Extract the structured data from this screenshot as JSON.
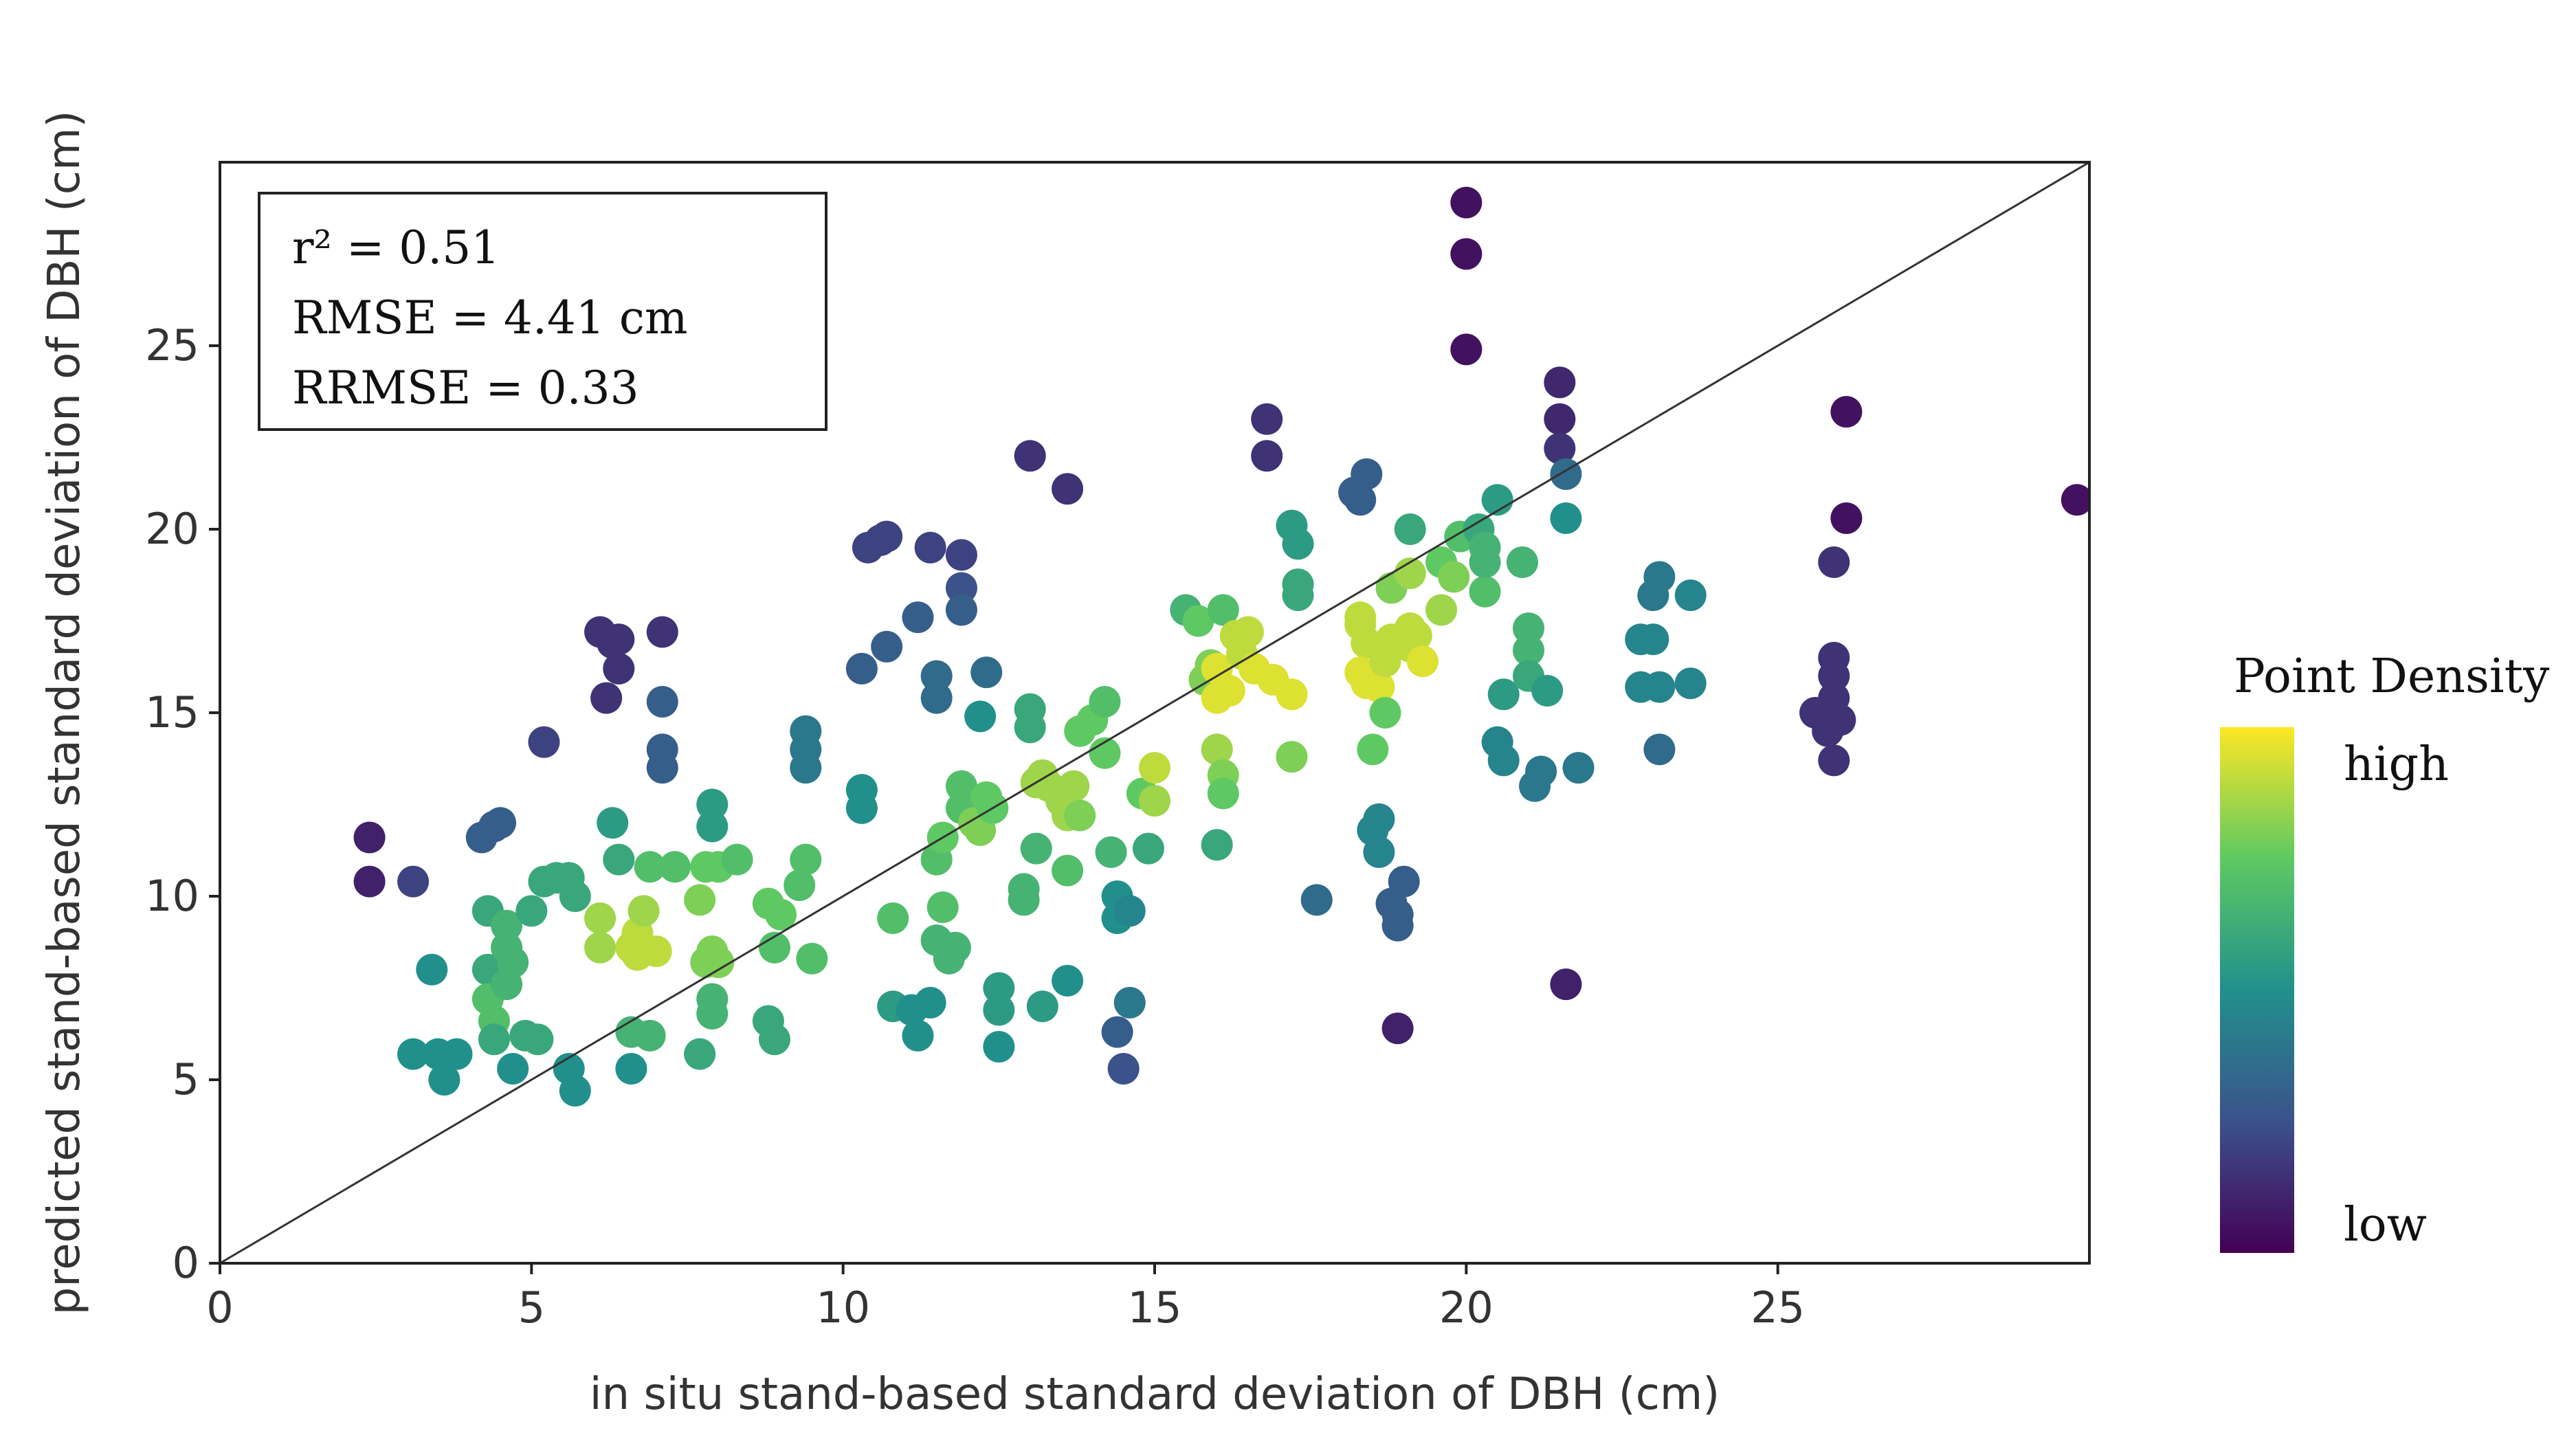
{
  "chart_data": {
    "type": "scatter",
    "xlabel": "in situ stand-based standard deviation of DBH (cm)",
    "ylabel": "predicted stand-based standard deviation of DBH (cm)",
    "xlim": [
      0,
      30
    ],
    "ylim": [
      0,
      30
    ],
    "xticks": [
      0,
      5,
      10,
      15,
      20,
      25
    ],
    "yticks": [
      0,
      5,
      10,
      15,
      20,
      25
    ],
    "grid": false,
    "reference_line": "1:1",
    "annotations": {
      "r2": "r² = 0.51",
      "rmse": "RMSE = 4.41 cm",
      "rrmse": "RRMSE = 0.33"
    },
    "colorbar": {
      "title": "Point Density",
      "high_label": "high",
      "low_label": "low",
      "colormap": [
        "#440154",
        "#3b528b",
        "#21908c",
        "#5ec962",
        "#fde725"
      ]
    },
    "points": [
      [
        2.4,
        11.6,
        0.1
      ],
      [
        2.4,
        10.4,
        0.1
      ],
      [
        3.1,
        10.4,
        0.2
      ],
      [
        3.1,
        5.7,
        0.5
      ],
      [
        3.4,
        8.0,
        0.5
      ],
      [
        3.5,
        5.7,
        0.5
      ],
      [
        3.6,
        5.0,
        0.5
      ],
      [
        3.8,
        5.7,
        0.5
      ],
      [
        4.2,
        11.6,
        0.3
      ],
      [
        4.4,
        11.9,
        0.3
      ],
      [
        4.5,
        12.0,
        0.3
      ],
      [
        4.3,
        9.6,
        0.6
      ],
      [
        4.3,
        8.0,
        0.6
      ],
      [
        4.3,
        7.2,
        0.7
      ],
      [
        4.4,
        6.6,
        0.7
      ],
      [
        4.4,
        6.1,
        0.6
      ],
      [
        4.6,
        9.2,
        0.65
      ],
      [
        4.6,
        8.6,
        0.65
      ],
      [
        4.7,
        8.2,
        0.65
      ],
      [
        4.6,
        7.6,
        0.65
      ],
      [
        4.7,
        5.3,
        0.5
      ],
      [
        4.9,
        6.2,
        0.6
      ],
      [
        5.0,
        9.6,
        0.6
      ],
      [
        5.1,
        6.1,
        0.6
      ],
      [
        5.2,
        14.2,
        0.2
      ],
      [
        5.2,
        10.4,
        0.6
      ],
      [
        5.4,
        10.5,
        0.6
      ],
      [
        5.6,
        10.5,
        0.6
      ],
      [
        5.6,
        5.3,
        0.5
      ],
      [
        5.7,
        4.7,
        0.5
      ],
      [
        5.7,
        10.0,
        0.6
      ],
      [
        6.1,
        8.6,
        0.85
      ],
      [
        6.1,
        9.4,
        0.85
      ],
      [
        6.1,
        17.2,
        0.15
      ],
      [
        6.2,
        15.4,
        0.15
      ],
      [
        6.3,
        16.9,
        0.15
      ],
      [
        6.4,
        16.2,
        0.15
      ],
      [
        6.4,
        17.0,
        0.15
      ],
      [
        6.3,
        12.0,
        0.55
      ],
      [
        6.4,
        11.0,
        0.6
      ],
      [
        6.6,
        8.6,
        0.9
      ],
      [
        6.7,
        9.0,
        0.9
      ],
      [
        6.7,
        8.4,
        0.9
      ],
      [
        6.8,
        9.6,
        0.85
      ],
      [
        6.9,
        10.8,
        0.7
      ],
      [
        6.6,
        6.3,
        0.65
      ],
      [
        6.6,
        5.3,
        0.5
      ],
      [
        6.9,
        6.2,
        0.65
      ],
      [
        7.0,
        8.5,
        0.9
      ],
      [
        7.1,
        17.2,
        0.15
      ],
      [
        7.1,
        15.3,
        0.3
      ],
      [
        7.1,
        14.0,
        0.3
      ],
      [
        7.1,
        13.5,
        0.3
      ],
      [
        7.3,
        10.8,
        0.7
      ],
      [
        7.8,
        10.8,
        0.75
      ],
      [
        7.7,
        9.9,
        0.8
      ],
      [
        7.8,
        8.2,
        0.8
      ],
      [
        7.7,
        5.7,
        0.6
      ],
      [
        7.9,
        8.5,
        0.8
      ],
      [
        7.9,
        12.5,
        0.55
      ],
      [
        7.9,
        11.9,
        0.55
      ],
      [
        7.9,
        7.2,
        0.65
      ],
      [
        7.9,
        6.8,
        0.65
      ],
      [
        8.0,
        10.8,
        0.75
      ],
      [
        8.0,
        8.2,
        0.8
      ],
      [
        8.3,
        11.0,
        0.7
      ],
      [
        8.8,
        9.8,
        0.75
      ],
      [
        8.8,
        6.6,
        0.6
      ],
      [
        8.9,
        6.1,
        0.6
      ],
      [
        8.9,
        8.6,
        0.7
      ],
      [
        9.0,
        9.5,
        0.75
      ],
      [
        9.3,
        10.3,
        0.7
      ],
      [
        9.4,
        11.0,
        0.7
      ],
      [
        9.4,
        14.5,
        0.4
      ],
      [
        9.4,
        14.0,
        0.4
      ],
      [
        9.4,
        13.5,
        0.4
      ],
      [
        9.5,
        8.3,
        0.7
      ],
      [
        10.3,
        12.9,
        0.5
      ],
      [
        10.3,
        12.4,
        0.5
      ],
      [
        10.3,
        16.2,
        0.3
      ],
      [
        10.4,
        19.5,
        0.2
      ],
      [
        10.6,
        19.7,
        0.2
      ],
      [
        10.7,
        19.8,
        0.2
      ],
      [
        10.7,
        16.8,
        0.3
      ],
      [
        10.8,
        9.4,
        0.7
      ],
      [
        10.8,
        7.0,
        0.55
      ],
      [
        11.2,
        17.6,
        0.3
      ],
      [
        11.1,
        6.9,
        0.5
      ],
      [
        11.2,
        6.2,
        0.5
      ],
      [
        11.4,
        7.1,
        0.5
      ],
      [
        11.4,
        19.5,
        0.2
      ],
      [
        11.5,
        16.0,
        0.35
      ],
      [
        11.5,
        15.4,
        0.35
      ],
      [
        11.5,
        11.0,
        0.7
      ],
      [
        11.6,
        11.6,
        0.75
      ],
      [
        11.6,
        9.7,
        0.7
      ],
      [
        11.5,
        8.8,
        0.65
      ],
      [
        11.7,
        8.3,
        0.65
      ],
      [
        11.8,
        8.6,
        0.65
      ],
      [
        11.9,
        13.0,
        0.7
      ],
      [
        11.9,
        12.4,
        0.7
      ],
      [
        11.9,
        19.3,
        0.2
      ],
      [
        11.9,
        18.4,
        0.25
      ],
      [
        11.9,
        17.8,
        0.3
      ],
      [
        12.1,
        12.0,
        0.8
      ],
      [
        12.2,
        11.8,
        0.8
      ],
      [
        12.2,
        14.9,
        0.5
      ],
      [
        12.3,
        12.7,
        0.75
      ],
      [
        12.3,
        16.1,
        0.35
      ],
      [
        12.4,
        12.4,
        0.75
      ],
      [
        12.5,
        7.5,
        0.55
      ],
      [
        12.5,
        6.9,
        0.55
      ],
      [
        12.5,
        5.9,
        0.5
      ],
      [
        12.9,
        9.9,
        0.65
      ],
      [
        12.9,
        10.2,
        0.65
      ],
      [
        13.1,
        13.1,
        0.85
      ],
      [
        13.2,
        13.3,
        0.85
      ],
      [
        13.2,
        7.0,
        0.55
      ],
      [
        13.0,
        22.0,
        0.15
      ],
      [
        13.0,
        14.6,
        0.6
      ],
      [
        13.0,
        15.1,
        0.6
      ],
      [
        13.1,
        11.3,
        0.65
      ],
      [
        13.3,
        13.0,
        0.85
      ],
      [
        13.5,
        12.6,
        0.85
      ],
      [
        13.6,
        12.2,
        0.85
      ],
      [
        13.6,
        7.7,
        0.5
      ],
      [
        13.6,
        21.1,
        0.15
      ],
      [
        13.6,
        10.7,
        0.7
      ],
      [
        13.7,
        13.0,
        0.85
      ],
      [
        13.8,
        14.5,
        0.75
      ],
      [
        13.8,
        12.2,
        0.8
      ],
      [
        14.0,
        14.8,
        0.75
      ],
      [
        14.2,
        15.3,
        0.7
      ],
      [
        14.2,
        13.9,
        0.75
      ],
      [
        14.3,
        11.2,
        0.65
      ],
      [
        14.4,
        10.0,
        0.5
      ],
      [
        14.4,
        9.4,
        0.5
      ],
      [
        14.4,
        6.3,
        0.3
      ],
      [
        14.5,
        5.3,
        0.25
      ],
      [
        14.6,
        7.1,
        0.4
      ],
      [
        14.6,
        9.6,
        0.45
      ],
      [
        14.9,
        11.3,
        0.6
      ],
      [
        14.8,
        12.8,
        0.75
      ],
      [
        15.0,
        13.5,
        0.9
      ],
      [
        15.0,
        12.6,
        0.85
      ],
      [
        15.5,
        17.8,
        0.65
      ],
      [
        15.7,
        17.5,
        0.75
      ],
      [
        15.9,
        16.3,
        0.8
      ],
      [
        15.8,
        15.9,
        0.8
      ],
      [
        16.0,
        16.2,
        0.95
      ],
      [
        16.0,
        15.4,
        0.95
      ],
      [
        16.1,
        17.8,
        0.7
      ],
      [
        16.0,
        14.0,
        0.85
      ],
      [
        16.1,
        13.3,
        0.8
      ],
      [
        16.1,
        12.8,
        0.75
      ],
      [
        16.0,
        11.4,
        0.6
      ],
      [
        16.2,
        15.6,
        0.95
      ],
      [
        16.3,
        17.1,
        0.9
      ],
      [
        16.4,
        16.6,
        0.9
      ],
      [
        16.5,
        17.2,
        0.9
      ],
      [
        16.6,
        16.2,
        0.95
      ],
      [
        16.8,
        23.0,
        0.15
      ],
      [
        16.8,
        22.0,
        0.15
      ],
      [
        16.9,
        15.9,
        0.95
      ],
      [
        17.2,
        15.5,
        0.95
      ],
      [
        17.2,
        13.8,
        0.8
      ],
      [
        17.2,
        20.1,
        0.55
      ],
      [
        17.3,
        19.6,
        0.55
      ],
      [
        17.3,
        18.5,
        0.6
      ],
      [
        17.3,
        18.2,
        0.6
      ],
      [
        17.6,
        9.9,
        0.35
      ],
      [
        18.2,
        21.0,
        0.3
      ],
      [
        18.4,
        21.5,
        0.3
      ],
      [
        18.3,
        20.8,
        0.3
      ],
      [
        18.3,
        17.6,
        0.9
      ],
      [
        18.3,
        17.4,
        0.9
      ],
      [
        18.4,
        16.9,
        0.9
      ],
      [
        18.3,
        16.1,
        0.95
      ],
      [
        18.4,
        15.8,
        0.95
      ],
      [
        18.5,
        15.9,
        0.95
      ],
      [
        18.6,
        15.7,
        0.95
      ],
      [
        18.5,
        14.0,
        0.75
      ],
      [
        18.6,
        12.1,
        0.45
      ],
      [
        18.5,
        11.8,
        0.45
      ],
      [
        18.6,
        11.2,
        0.45
      ],
      [
        18.7,
        15.0,
        0.75
      ],
      [
        18.7,
        16.4,
        0.9
      ],
      [
        18.8,
        18.4,
        0.8
      ],
      [
        18.8,
        17.0,
        0.9
      ],
      [
        18.8,
        9.8,
        0.3
      ],
      [
        18.9,
        9.5,
        0.3
      ],
      [
        18.9,
        6.4,
        0.1
      ],
      [
        18.9,
        9.2,
        0.3
      ],
      [
        19.0,
        10.4,
        0.3
      ],
      [
        19.1,
        20.0,
        0.6
      ],
      [
        19.1,
        17.3,
        0.9
      ],
      [
        19.1,
        16.8,
        0.9
      ],
      [
        19.1,
        18.8,
        0.85
      ],
      [
        19.2,
        17.1,
        0.9
      ],
      [
        19.3,
        16.4,
        0.95
      ],
      [
        19.6,
        17.8,
        0.85
      ],
      [
        19.6,
        19.1,
        0.75
      ],
      [
        19.8,
        18.7,
        0.8
      ],
      [
        19.9,
        19.8,
        0.7
      ],
      [
        20.0,
        28.9,
        0.05
      ],
      [
        20.0,
        27.5,
        0.05
      ],
      [
        20.0,
        24.9,
        0.05
      ],
      [
        20.2,
        20.0,
        0.6
      ],
      [
        20.3,
        19.5,
        0.65
      ],
      [
        20.3,
        18.3,
        0.7
      ],
      [
        20.3,
        19.1,
        0.65
      ],
      [
        20.5,
        20.8,
        0.55
      ],
      [
        20.5,
        14.2,
        0.45
      ],
      [
        20.6,
        13.7,
        0.45
      ],
      [
        20.6,
        15.5,
        0.55
      ],
      [
        20.9,
        19.1,
        0.65
      ],
      [
        21.0,
        17.3,
        0.65
      ],
      [
        21.0,
        16.7,
        0.65
      ],
      [
        21.0,
        16.0,
        0.6
      ],
      [
        21.1,
        13.0,
        0.4
      ],
      [
        21.2,
        13.4,
        0.4
      ],
      [
        21.3,
        15.6,
        0.55
      ],
      [
        21.5,
        24.0,
        0.12
      ],
      [
        21.5,
        23.0,
        0.12
      ],
      [
        21.5,
        22.2,
        0.15
      ],
      [
        21.6,
        21.5,
        0.35
      ],
      [
        21.6,
        20.3,
        0.5
      ],
      [
        21.6,
        7.6,
        0.1
      ],
      [
        21.8,
        13.5,
        0.4
      ],
      [
        22.8,
        15.7,
        0.45
      ],
      [
        22.8,
        17.0,
        0.45
      ],
      [
        23.1,
        18.7,
        0.4
      ],
      [
        23.0,
        18.2,
        0.4
      ],
      [
        23.0,
        17.0,
        0.45
      ],
      [
        23.1,
        15.7,
        0.45
      ],
      [
        23.1,
        14.0,
        0.35
      ],
      [
        23.6,
        18.2,
        0.45
      ],
      [
        23.6,
        15.8,
        0.45
      ],
      [
        25.6,
        15.0,
        0.15
      ],
      [
        25.8,
        14.5,
        0.15
      ],
      [
        25.9,
        19.1,
        0.15
      ],
      [
        25.9,
        16.5,
        0.15
      ],
      [
        25.9,
        16.0,
        0.15
      ],
      [
        25.9,
        15.4,
        0.15
      ],
      [
        26.0,
        14.8,
        0.15
      ],
      [
        25.9,
        13.7,
        0.15
      ],
      [
        26.1,
        23.2,
        0.05
      ],
      [
        26.1,
        20.3,
        0.05
      ],
      [
        29.8,
        20.8,
        0.05
      ]
    ]
  }
}
